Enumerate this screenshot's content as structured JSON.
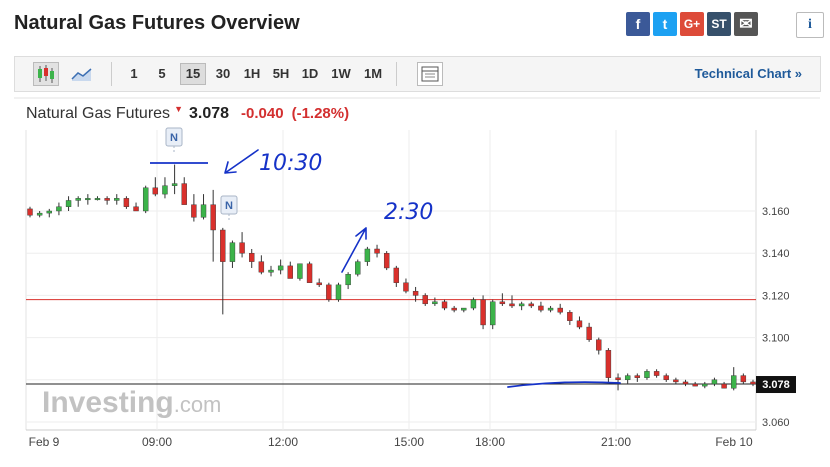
{
  "page": {
    "title": "Natural Gas Futures Overview"
  },
  "share_buttons": [
    {
      "name": "facebook-icon",
      "glyph": "f",
      "color": "#3b5998"
    },
    {
      "name": "twitter-icon",
      "glyph": "t",
      "color": "#1da1f2"
    },
    {
      "name": "google-plus-icon",
      "glyph": "G+",
      "color": "#dd4b39"
    },
    {
      "name": "stocktwits-icon",
      "glyph": "ST",
      "color": "#36506b"
    },
    {
      "name": "email-icon",
      "glyph": "✉",
      "color": "#555555"
    }
  ],
  "info_button": {
    "glyph": "i"
  },
  "toolbar": {
    "timeframes": [
      "1",
      "5",
      "15",
      "30",
      "1H",
      "5H",
      "1D",
      "1W",
      "1M"
    ],
    "active_timeframe": "15",
    "technical_chart_label": "Technical Chart »"
  },
  "quote": {
    "name": "Natural Gas Futures",
    "direction_glyph": "▼",
    "price": "3.078",
    "change": "-0.040",
    "change_pct": "(-1.28%)"
  },
  "watermark": {
    "brand": "Investing",
    "suffix": ".com"
  },
  "annotations": {
    "note_1": "10:30",
    "note_2": "2:30",
    "news_marker": "N"
  },
  "chart_data": {
    "type": "candlestick",
    "x_ticks": [
      "Feb 9",
      "09:00",
      "12:00",
      "15:00",
      "18:00",
      "21:00",
      "Feb 10"
    ],
    "y_ticks": [
      "3.160",
      "3.140",
      "3.120",
      "3.100",
      "3.080",
      "3.060"
    ],
    "ylim": [
      3.056,
      3.188
    ],
    "prev_close": 3.118,
    "last_price": 3.078,
    "last_price_label": "3.078",
    "colors": {
      "up": "#3cb34a",
      "down": "#d9302c",
      "prev_close_line": "#d9302c",
      "last_line": "#222222"
    },
    "candles": [
      [
        3.161,
        3.162,
        3.157,
        3.158
      ],
      [
        3.158,
        3.16,
        3.157,
        3.159
      ],
      [
        3.159,
        3.161,
        3.157,
        3.16
      ],
      [
        3.16,
        3.164,
        3.158,
        3.162
      ],
      [
        3.162,
        3.167,
        3.16,
        3.165
      ],
      [
        3.165,
        3.167,
        3.162,
        3.166
      ],
      [
        3.166,
        3.168,
        3.163,
        3.166
      ],
      [
        3.166,
        3.167,
        3.165,
        3.166
      ],
      [
        3.166,
        3.167,
        3.163,
        3.165
      ],
      [
        3.165,
        3.168,
        3.163,
        3.166
      ],
      [
        3.166,
        3.167,
        3.161,
        3.162
      ],
      [
        3.162,
        3.164,
        3.16,
        3.16
      ],
      [
        3.16,
        3.172,
        3.159,
        3.171
      ],
      [
        3.171,
        3.176,
        3.167,
        3.168
      ],
      [
        3.168,
        3.176,
        3.166,
        3.172
      ],
      [
        3.172,
        3.182,
        3.168,
        3.173
      ],
      [
        3.173,
        3.176,
        3.164,
        3.163
      ],
      [
        3.163,
        3.168,
        3.155,
        3.157
      ],
      [
        3.157,
        3.168,
        3.156,
        3.163
      ],
      [
        3.163,
        3.17,
        3.136,
        3.151
      ],
      [
        3.151,
        3.152,
        3.111,
        3.136
      ],
      [
        3.136,
        3.146,
        3.133,
        3.145
      ],
      [
        3.145,
        3.15,
        3.138,
        3.14
      ],
      [
        3.14,
        3.142,
        3.133,
        3.136
      ],
      [
        3.136,
        3.139,
        3.13,
        3.131
      ],
      [
        3.131,
        3.134,
        3.129,
        3.132
      ],
      [
        3.132,
        3.137,
        3.13,
        3.134
      ],
      [
        3.134,
        3.136,
        3.128,
        3.128
      ],
      [
        3.128,
        3.135,
        3.127,
        3.135
      ],
      [
        3.135,
        3.136,
        3.126,
        3.126
      ],
      [
        3.126,
        3.128,
        3.124,
        3.125
      ],
      [
        3.125,
        3.126,
        3.117,
        3.118
      ],
      [
        3.118,
        3.126,
        3.117,
        3.125
      ],
      [
        3.125,
        3.131,
        3.123,
        3.13
      ],
      [
        3.13,
        3.137,
        3.129,
        3.136
      ],
      [
        3.136,
        3.143,
        3.134,
        3.142
      ],
      [
        3.142,
        3.144,
        3.138,
        3.14
      ],
      [
        3.14,
        3.141,
        3.132,
        3.133
      ],
      [
        3.133,
        3.134,
        3.124,
        3.126
      ],
      [
        3.126,
        3.128,
        3.121,
        3.122
      ],
      [
        3.122,
        3.124,
        3.117,
        3.12
      ],
      [
        3.12,
        3.121,
        3.115,
        3.116
      ],
      [
        3.116,
        3.119,
        3.115,
        3.117
      ],
      [
        3.117,
        3.118,
        3.113,
        3.114
      ],
      [
        3.114,
        3.115,
        3.112,
        3.113
      ],
      [
        3.113,
        3.114,
        3.112,
        3.114
      ],
      [
        3.114,
        3.119,
        3.113,
        3.118
      ],
      [
        3.118,
        3.12,
        3.104,
        3.106
      ],
      [
        3.106,
        3.118,
        3.104,
        3.117
      ],
      [
        3.117,
        3.121,
        3.115,
        3.116
      ],
      [
        3.116,
        3.12,
        3.114,
        3.115
      ],
      [
        3.115,
        3.117,
        3.113,
        3.116
      ],
      [
        3.116,
        3.117,
        3.114,
        3.115
      ],
      [
        3.115,
        3.117,
        3.112,
        3.113
      ],
      [
        3.113,
        3.115,
        3.112,
        3.114
      ],
      [
        3.114,
        3.116,
        3.111,
        3.112
      ],
      [
        3.112,
        3.113,
        3.106,
        3.108
      ],
      [
        3.108,
        3.11,
        3.104,
        3.105
      ],
      [
        3.105,
        3.107,
        3.098,
        3.099
      ],
      [
        3.099,
        3.1,
        3.092,
        3.094
      ],
      [
        3.094,
        3.095,
        3.078,
        3.081
      ],
      [
        3.081,
        3.083,
        3.075,
        3.08
      ],
      [
        3.08,
        3.083,
        3.078,
        3.082
      ],
      [
        3.082,
        3.083,
        3.079,
        3.081
      ],
      [
        3.081,
        3.085,
        3.08,
        3.084
      ],
      [
        3.084,
        3.085,
        3.081,
        3.082
      ],
      [
        3.082,
        3.083,
        3.079,
        3.08
      ],
      [
        3.08,
        3.081,
        3.078,
        3.079
      ],
      [
        3.079,
        3.08,
        3.077,
        3.078
      ],
      [
        3.078,
        3.079,
        3.077,
        3.077
      ],
      [
        3.077,
        3.079,
        3.076,
        3.078
      ],
      [
        3.078,
        3.081,
        3.077,
        3.08
      ],
      [
        3.078,
        3.079,
        3.076,
        3.076
      ],
      [
        3.076,
        3.086,
        3.075,
        3.082
      ],
      [
        3.082,
        3.083,
        3.078,
        3.079
      ],
      [
        3.079,
        3.08,
        3.077,
        3.078
      ]
    ]
  }
}
